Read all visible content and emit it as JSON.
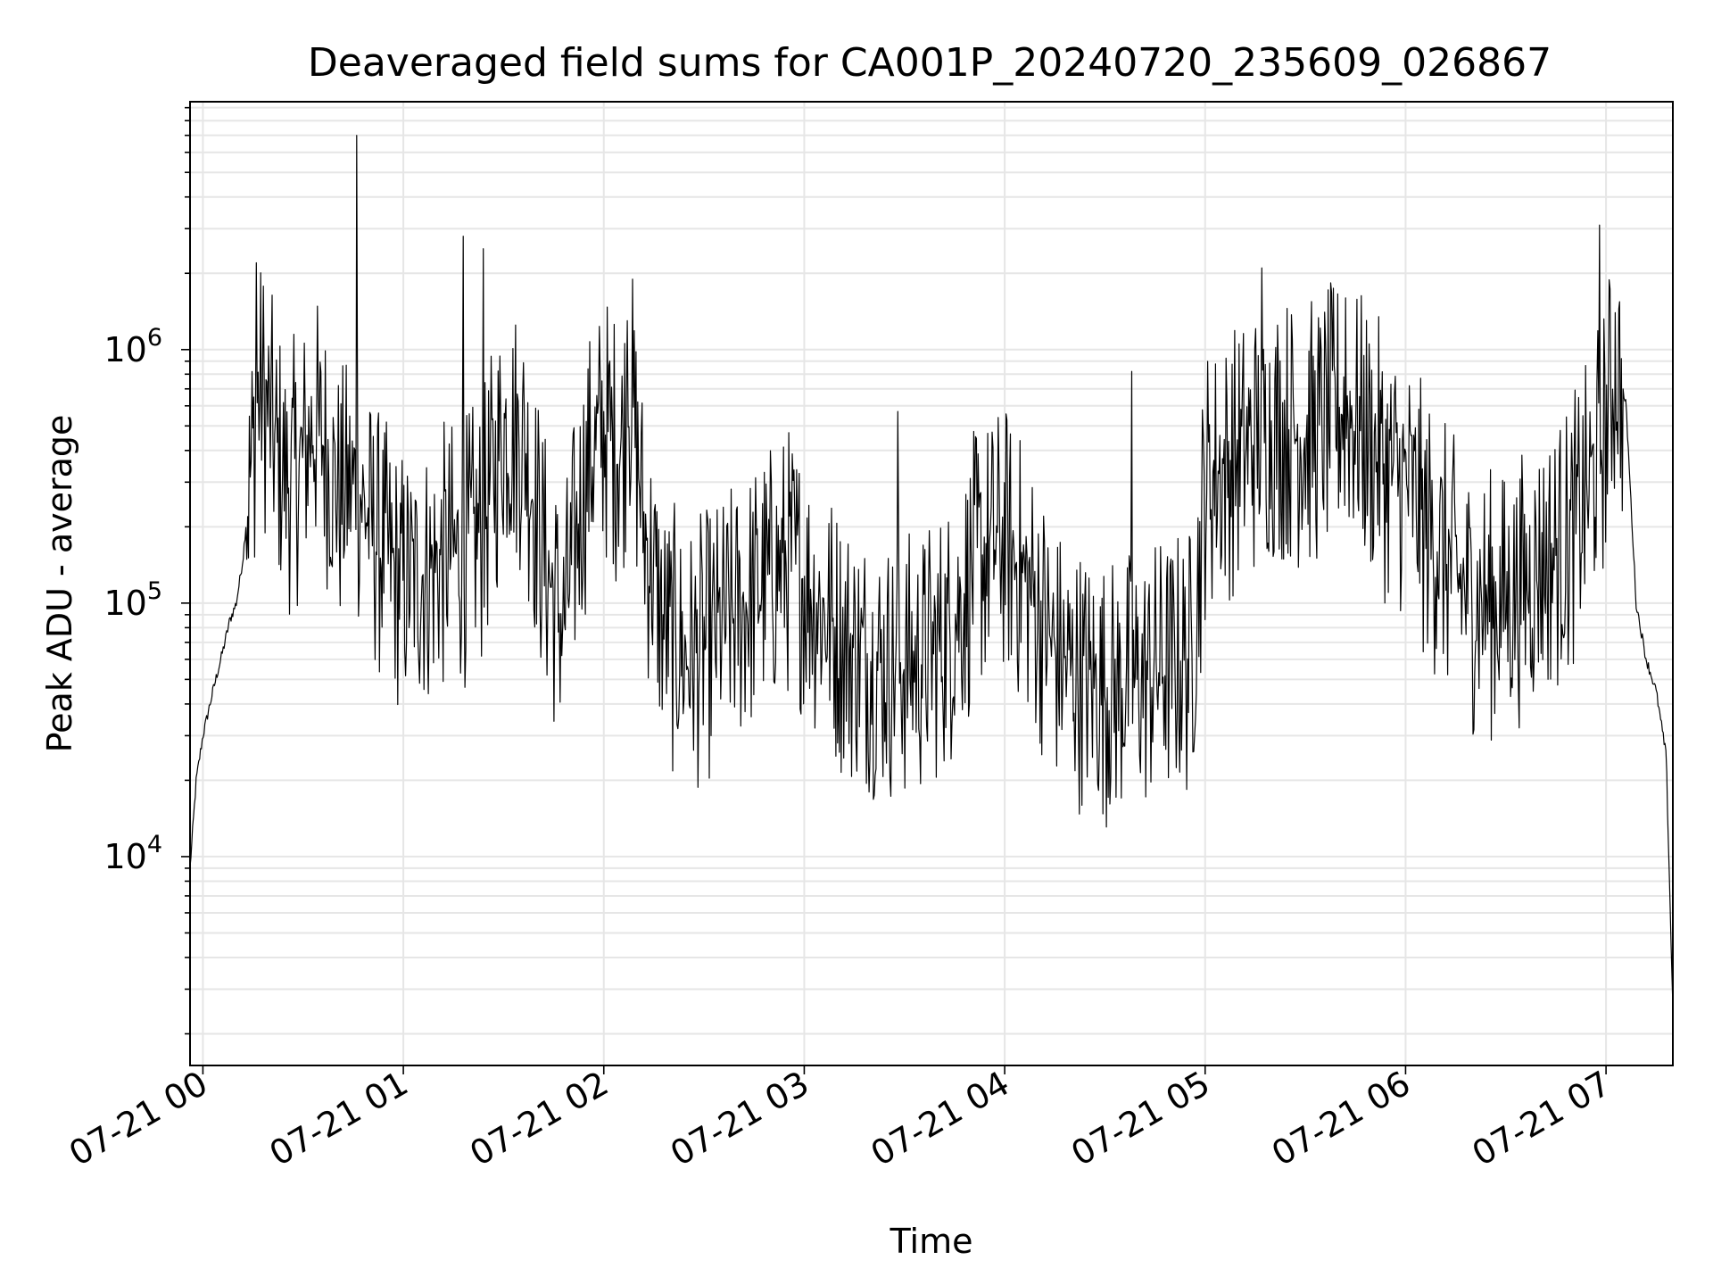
{
  "chart_data": {
    "type": "line",
    "title": "Deaveraged field sums for CA001P_20240720_235609_026867",
    "xlabel": "Time",
    "ylabel": "Peak ADU - average",
    "yscale": "log",
    "ylim": [
      1500,
      9500000
    ],
    "xlim": [
      "2024-07-20 23:56:09",
      "2024-07-21 07:20:00"
    ],
    "grid": true,
    "line_color": "#000000",
    "x_ticks": [
      "07-21 00",
      "07-21 01",
      "07-21 02",
      "07-21 03",
      "07-21 04",
      "07-21 05",
      "07-21 06",
      "07-21 07"
    ],
    "y_ticks": [
      {
        "base": "10",
        "exp": "4"
      },
      {
        "base": "10",
        "exp": "5"
      },
      {
        "base": "10",
        "exp": "6"
      }
    ],
    "series": [
      {
        "x": [
          "2024-07-20 23:56:09",
          "2024-07-20 23:58:00",
          "2024-07-21 00:00:00",
          "2024-07-21 00:03:00",
          "2024-07-21 00:06:00",
          "2024-07-21 00:08:00",
          "2024-07-21 00:10:00",
          "2024-07-21 00:12:00",
          "2024-07-21 00:14:00",
          "2024-07-21 00:16:00",
          "2024-07-21 00:18:00",
          "2024-07-21 00:21:00",
          "2024-07-21 00:25:00",
          "2024-07-21 00:29:00",
          "2024-07-21 00:33:00",
          "2024-07-21 00:37:00",
          "2024-07-21 00:41:00",
          "2024-07-21 00:46:00",
          "2024-07-21 00:50:00",
          "2024-07-21 00:55:00",
          "2024-07-21 01:00:00",
          "2024-07-21 01:06:00",
          "2024-07-21 01:12:00",
          "2024-07-21 01:18:00",
          "2024-07-21 01:24:00",
          "2024-07-21 01:30:00",
          "2024-07-21 01:36:00",
          "2024-07-21 01:42:00",
          "2024-07-21 01:48:00",
          "2024-07-21 01:54:00",
          "2024-07-21 02:00:00",
          "2024-07-21 02:05:00",
          "2024-07-21 02:08:00",
          "2024-07-21 02:12:00",
          "2024-07-21 02:18:00",
          "2024-07-21 02:25:00",
          "2024-07-21 02:32:00",
          "2024-07-21 02:40:00",
          "2024-07-21 02:48:00",
          "2024-07-21 02:56:00",
          "2024-07-21 03:04:00",
          "2024-07-21 03:12:00",
          "2024-07-21 03:20:00",
          "2024-07-21 03:28:00",
          "2024-07-21 03:36:00",
          "2024-07-21 03:44:00",
          "2024-07-21 03:52:00",
          "2024-07-21 04:00:00",
          "2024-07-21 04:08:00",
          "2024-07-21 04:16:00",
          "2024-07-21 04:24:00",
          "2024-07-21 04:32:00",
          "2024-07-21 04:40:00",
          "2024-07-21 04:48:00",
          "2024-07-21 04:56:00",
          "2024-07-21 05:00:00",
          "2024-07-21 05:06:00",
          "2024-07-21 05:12:00",
          "2024-07-21 05:18:00",
          "2024-07-21 05:24:00",
          "2024-07-21 05:30:00",
          "2024-07-21 05:36:00",
          "2024-07-21 05:42:00",
          "2024-07-21 05:48:00",
          "2024-07-21 05:54:00",
          "2024-07-21 06:00:00",
          "2024-07-21 06:06:00",
          "2024-07-21 06:12:00",
          "2024-07-21 06:18:00",
          "2024-07-21 06:24:00",
          "2024-07-21 06:30:00",
          "2024-07-21 06:36:00",
          "2024-07-21 06:42:00",
          "2024-07-21 06:48:00",
          "2024-07-21 06:54:00",
          "2024-07-21 07:00:00",
          "2024-07-21 07:03:00",
          "2024-07-21 07:06:00",
          "2024-07-21 07:09:00",
          "2024-07-21 07:12:00",
          "2024-07-21 07:15:00",
          "2024-07-21 07:18:00",
          "2024-07-21 07:20:00"
        ],
        "y": [
          9000,
          20000,
          30000,
          45000,
          65000,
          85000,
          100000,
          150000,
          300000,
          600000,
          700000,
          450000,
          300000,
          350000,
          500000,
          400000,
          250000,
          300000,
          200000,
          150000,
          120000,
          130000,
          150000,
          160000,
          200000,
          500000,
          450000,
          150000,
          80000,
          300000,
          500000,
          400000,
          700000,
          200000,
          80000,
          60000,
          70000,
          90000,
          120000,
          150000,
          100000,
          70000,
          60000,
          55000,
          60000,
          80000,
          150000,
          180000,
          110000,
          60000,
          50000,
          45000,
          50000,
          55000,
          60000,
          300000,
          350000,
          400000,
          500000,
          500000,
          450000,
          500000,
          600000,
          450000,
          350000,
          300000,
          200000,
          150000,
          110000,
          100000,
          100000,
          120000,
          150000,
          170000,
          250000,
          500000,
          900000,
          600000,
          100000,
          60000,
          45000,
          25000,
          2500
        ],
        "peaks": [
          {
            "x": "2024-07-21 00:16:00",
            "y": 2200000
          },
          {
            "x": "2024-07-21 00:46:00",
            "y": 7000000
          },
          {
            "x": "2024-07-21 01:18:00",
            "y": 2800000
          },
          {
            "x": "2024-07-21 01:24:00",
            "y": 2500000
          },
          {
            "x": "2024-07-21 02:07:00",
            "y": 1300000
          },
          {
            "x": "2024-07-21 03:28:00",
            "y": 570000
          },
          {
            "x": "2024-07-21 04:38:00",
            "y": 820000
          },
          {
            "x": "2024-07-21 05:17:00",
            "y": 2100000
          },
          {
            "x": "2024-07-21 05:42:00",
            "y": 1600000
          },
          {
            "x": "2024-07-21 06:58:00",
            "y": 3100000
          }
        ]
      }
    ]
  }
}
